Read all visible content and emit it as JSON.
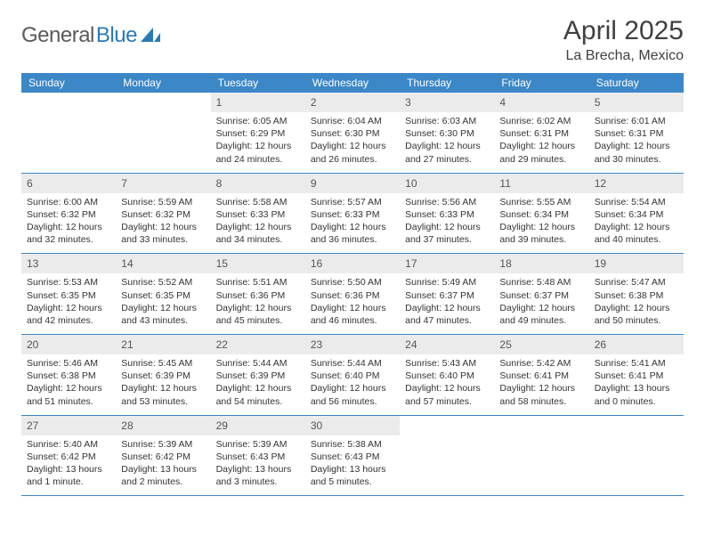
{
  "brand": {
    "part1": "General",
    "part2": "Blue"
  },
  "title": "April 2025",
  "location": "La Brecha, Mexico",
  "colors": {
    "header_bg": "#3b87c8",
    "header_text": "#ffffff",
    "daynum_bg": "#ebebeb",
    "border": "#3b87c8",
    "body_text": "#333333",
    "title_text": "#404040"
  },
  "weekdays": [
    "Sunday",
    "Monday",
    "Tuesday",
    "Wednesday",
    "Thursday",
    "Friday",
    "Saturday"
  ],
  "weeks": [
    [
      {
        "n": "",
        "empty": true
      },
      {
        "n": "",
        "empty": true
      },
      {
        "n": "1",
        "sr": "6:05 AM",
        "ss": "6:29 PM",
        "dl": "12 hours and 24 minutes."
      },
      {
        "n": "2",
        "sr": "6:04 AM",
        "ss": "6:30 PM",
        "dl": "12 hours and 26 minutes."
      },
      {
        "n": "3",
        "sr": "6:03 AM",
        "ss": "6:30 PM",
        "dl": "12 hours and 27 minutes."
      },
      {
        "n": "4",
        "sr": "6:02 AM",
        "ss": "6:31 PM",
        "dl": "12 hours and 29 minutes."
      },
      {
        "n": "5",
        "sr": "6:01 AM",
        "ss": "6:31 PM",
        "dl": "12 hours and 30 minutes."
      }
    ],
    [
      {
        "n": "6",
        "sr": "6:00 AM",
        "ss": "6:32 PM",
        "dl": "12 hours and 32 minutes."
      },
      {
        "n": "7",
        "sr": "5:59 AM",
        "ss": "6:32 PM",
        "dl": "12 hours and 33 minutes."
      },
      {
        "n": "8",
        "sr": "5:58 AM",
        "ss": "6:33 PM",
        "dl": "12 hours and 34 minutes."
      },
      {
        "n": "9",
        "sr": "5:57 AM",
        "ss": "6:33 PM",
        "dl": "12 hours and 36 minutes."
      },
      {
        "n": "10",
        "sr": "5:56 AM",
        "ss": "6:33 PM",
        "dl": "12 hours and 37 minutes."
      },
      {
        "n": "11",
        "sr": "5:55 AM",
        "ss": "6:34 PM",
        "dl": "12 hours and 39 minutes."
      },
      {
        "n": "12",
        "sr": "5:54 AM",
        "ss": "6:34 PM",
        "dl": "12 hours and 40 minutes."
      }
    ],
    [
      {
        "n": "13",
        "sr": "5:53 AM",
        "ss": "6:35 PM",
        "dl": "12 hours and 42 minutes."
      },
      {
        "n": "14",
        "sr": "5:52 AM",
        "ss": "6:35 PM",
        "dl": "12 hours and 43 minutes."
      },
      {
        "n": "15",
        "sr": "5:51 AM",
        "ss": "6:36 PM",
        "dl": "12 hours and 45 minutes."
      },
      {
        "n": "16",
        "sr": "5:50 AM",
        "ss": "6:36 PM",
        "dl": "12 hours and 46 minutes."
      },
      {
        "n": "17",
        "sr": "5:49 AM",
        "ss": "6:37 PM",
        "dl": "12 hours and 47 minutes."
      },
      {
        "n": "18",
        "sr": "5:48 AM",
        "ss": "6:37 PM",
        "dl": "12 hours and 49 minutes."
      },
      {
        "n": "19",
        "sr": "5:47 AM",
        "ss": "6:38 PM",
        "dl": "12 hours and 50 minutes."
      }
    ],
    [
      {
        "n": "20",
        "sr": "5:46 AM",
        "ss": "6:38 PM",
        "dl": "12 hours and 51 minutes."
      },
      {
        "n": "21",
        "sr": "5:45 AM",
        "ss": "6:39 PM",
        "dl": "12 hours and 53 minutes."
      },
      {
        "n": "22",
        "sr": "5:44 AM",
        "ss": "6:39 PM",
        "dl": "12 hours and 54 minutes."
      },
      {
        "n": "23",
        "sr": "5:44 AM",
        "ss": "6:40 PM",
        "dl": "12 hours and 56 minutes."
      },
      {
        "n": "24",
        "sr": "5:43 AM",
        "ss": "6:40 PM",
        "dl": "12 hours and 57 minutes."
      },
      {
        "n": "25",
        "sr": "5:42 AM",
        "ss": "6:41 PM",
        "dl": "12 hours and 58 minutes."
      },
      {
        "n": "26",
        "sr": "5:41 AM",
        "ss": "6:41 PM",
        "dl": "13 hours and 0 minutes."
      }
    ],
    [
      {
        "n": "27",
        "sr": "5:40 AM",
        "ss": "6:42 PM",
        "dl": "13 hours and 1 minute."
      },
      {
        "n": "28",
        "sr": "5:39 AM",
        "ss": "6:42 PM",
        "dl": "13 hours and 2 minutes."
      },
      {
        "n": "29",
        "sr": "5:39 AM",
        "ss": "6:43 PM",
        "dl": "13 hours and 3 minutes."
      },
      {
        "n": "30",
        "sr": "5:38 AM",
        "ss": "6:43 PM",
        "dl": "13 hours and 5 minutes."
      },
      {
        "n": "",
        "empty": true
      },
      {
        "n": "",
        "empty": true
      },
      {
        "n": "",
        "empty": true
      }
    ]
  ],
  "labels": {
    "sunrise": "Sunrise: ",
    "sunset": "Sunset: ",
    "daylight": "Daylight: "
  }
}
